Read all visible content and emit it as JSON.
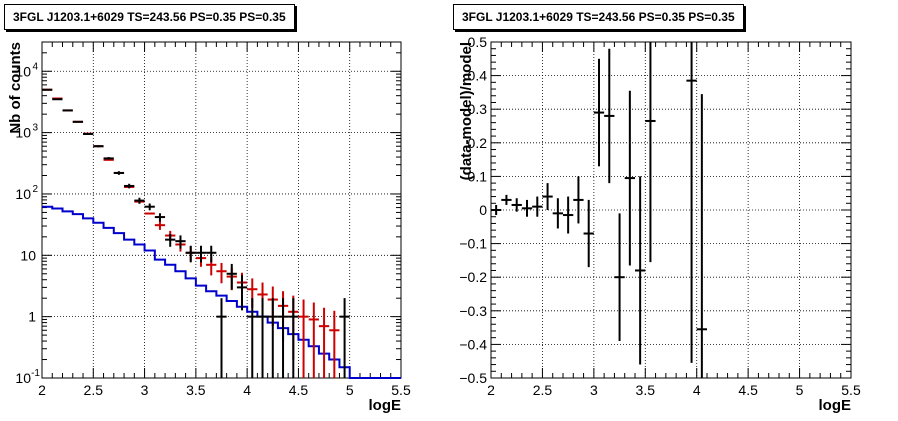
{
  "chart_data": [
    {
      "type": "line",
      "title": "3FGL J1203.1+6029 TS=243.56 PS=0.35 PS=0.35",
      "xlabel": "logE",
      "ylabel": "Nb of counts",
      "xlim": [
        2,
        5.5
      ],
      "ylim": [
        0.1,
        30000
      ],
      "yscale": "log",
      "grid": true,
      "xticks": [
        "2",
        "2.5",
        "3",
        "3.5",
        "4",
        "4.5",
        "5",
        "5.5"
      ],
      "yticks": [
        {
          "value": 0.1,
          "label": "10",
          "sup": "-1"
        },
        {
          "value": 1,
          "label": "1",
          "sup": ""
        },
        {
          "value": 10,
          "label": "10",
          "sup": ""
        },
        {
          "value": 100,
          "label": "10",
          "sup": "2"
        },
        {
          "value": 1000,
          "label": "10",
          "sup": "3"
        },
        {
          "value": 10000,
          "label": "10",
          "sup": "4"
        }
      ],
      "colors": {
        "data": "#000000",
        "model_points": "#cc0000",
        "model_line": "#0000cc"
      },
      "series": [
        {
          "x": [
            2.05,
            2.15,
            2.25,
            2.35,
            2.45,
            2.55,
            2.65,
            2.75,
            2.85,
            2.95,
            3.05,
            3.15,
            3.25,
            3.35,
            3.45,
            3.55,
            3.65,
            3.75,
            3.85,
            3.95,
            4.05,
            4.15,
            4.25,
            4.35,
            4.45,
            4.55,
            4.65,
            4.75,
            4.85,
            4.95
          ],
          "y": [
            5000,
            3500,
            2300,
            1500,
            950,
            600,
            380,
            220,
            135,
            78,
            62,
            42,
            18,
            17,
            11,
            11,
            11,
            1,
            5,
            3,
            1,
            1,
            1,
            1,
            1,
            0,
            0,
            0,
            0,
            1
          ],
          "xerr": 0.05
        },
        {
          "x": [
            2.05,
            2.15,
            2.25,
            2.35,
            2.45,
            2.55,
            2.65,
            2.75,
            2.85,
            2.95,
            3.05,
            3.15,
            3.25,
            3.35,
            3.45,
            3.55,
            3.65,
            3.75,
            3.85,
            3.95,
            4.05,
            4.15,
            4.25,
            4.35,
            4.45,
            4.55,
            4.65,
            4.75,
            4.85
          ],
          "y": [
            5000,
            3600,
            2300,
            1500,
            960,
            600,
            360,
            220,
            130,
            75,
            48,
            31,
            21,
            15,
            11,
            9,
            7,
            5.5,
            4.5,
            3.6,
            2.8,
            2.3,
            1.9,
            1.5,
            1.2,
            1.0,
            0.9,
            0.7,
            0.6
          ],
          "yerr": [
            0,
            0,
            0,
            0,
            0,
            0,
            0,
            0,
            0,
            0,
            0,
            5,
            4,
            3.5,
            3,
            2.5,
            2.3,
            2,
            1.8,
            1.6,
            1.4,
            1.3,
            1.2,
            1.1,
            1.0,
            0.9,
            0.8,
            0.7,
            0.65
          ],
          "xerr": 0.05
        },
        {
          "edges": [
            2.0,
            2.1,
            2.2,
            2.3,
            2.4,
            2.5,
            2.6,
            2.7,
            2.8,
            2.9,
            3.0,
            3.1,
            3.2,
            3.3,
            3.4,
            3.5,
            3.6,
            3.7,
            3.8,
            3.9,
            4.0,
            4.1,
            4.2,
            4.3,
            4.4,
            4.5,
            4.6,
            4.7,
            4.8,
            4.9,
            5.0,
            5.5
          ],
          "y": [
            62,
            58,
            52,
            47,
            40,
            34,
            28,
            23,
            18,
            15,
            12,
            8.5,
            7,
            5.5,
            4.2,
            3.2,
            2.6,
            2.2,
            1.8,
            1.45,
            1.2,
            1.0,
            0.8,
            0.65,
            0.52,
            0.42,
            0.33,
            0.25,
            0.2,
            0.15,
            0.1
          ]
        }
      ]
    },
    {
      "type": "scatter",
      "title": "3FGL J1203.1+6029 TS=243.56 PS=0.35 PS=0.35",
      "xlabel": "logE",
      "ylabel": "(data-model)/model",
      "xlim": [
        2,
        5.5
      ],
      "ylim": [
        -0.5,
        0.5
      ],
      "grid": true,
      "xticks": [
        "2",
        "2.5",
        "3",
        "3.5",
        "4",
        "4.5",
        "5",
        "5.5"
      ],
      "yticks": [
        "−0.5",
        "−0.4",
        "−0.3",
        "−0.2",
        "−0.1",
        "0",
        "0.1",
        "0.2",
        "0.3",
        "0.4",
        "0.5"
      ],
      "series": [
        {
          "x": [
            2.05,
            2.15,
            2.25,
            2.35,
            2.45,
            2.55,
            2.65,
            2.75,
            2.85,
            2.95,
            3.05,
            3.15,
            3.25,
            3.35,
            3.45,
            3.55,
            3.95,
            4.05
          ],
          "y": [
            0.0,
            0.03,
            0.015,
            0.005,
            0.01,
            0.04,
            -0.01,
            -0.015,
            0.03,
            -0.07,
            0.29,
            0.28,
            -0.2,
            0.095,
            -0.18,
            0.265,
            0.385,
            -0.355
          ],
          "yerr": [
            0.015,
            0.015,
            0.02,
            0.025,
            0.03,
            0.04,
            0.045,
            0.055,
            0.07,
            0.1,
            0.16,
            0.2,
            0.19,
            0.26,
            0.28,
            0.42,
            0.84,
            0.7
          ],
          "xerr": 0.05
        }
      ]
    }
  ]
}
